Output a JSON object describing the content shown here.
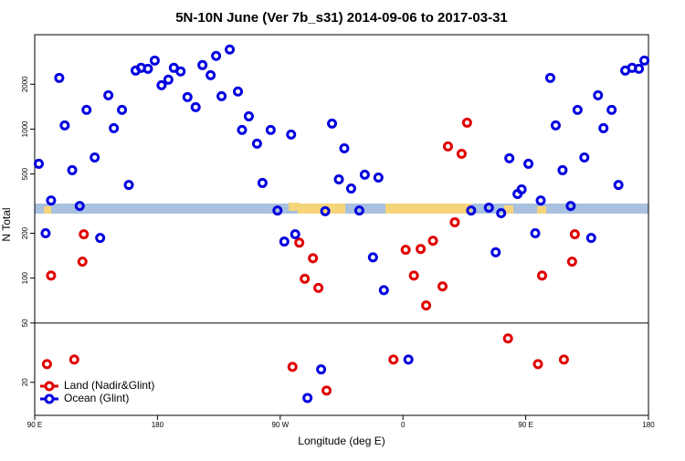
{
  "chart_data": {
    "type": "scatter",
    "title": "5N-10N June (Ver 7b_s31)   2014-09-06 to 2017-03-31",
    "x_label": "Longitude (deg E)",
    "y_label": "N Total",
    "xlim": [
      90,
      540
    ],
    "ylim": [
      12,
      4300
    ],
    "log_y": true,
    "hline": 50,
    "xticks": [
      {
        "value": 90,
        "label": "90 E"
      },
      180,
      {
        "value": 270,
        "label": "90 W"
      },
      {
        "value": 360,
        "label": "0"
      },
      {
        "value": 450,
        "label": "90 E"
      },
      {
        "value": 540,
        "label": "180"
      }
    ],
    "yticks": [
      20,
      50,
      100,
      200,
      500,
      1000,
      2000
    ],
    "legend": "bottom-left",
    "series": [
      {
        "name": "Land (Nadir&Glint)",
        "color": "#e00000",
        "x": [
          99,
          102,
          119,
          125,
          126,
          279,
          284,
          288,
          294,
          298,
          304,
          353,
          362,
          368,
          373,
          377,
          382,
          389,
          393,
          398,
          403,
          407,
          437,
          459,
          462,
          478,
          484,
          486
        ],
        "values": [
          26.5,
          104,
          28.4,
          129,
          197,
          25.4,
          173,
          99,
          136,
          86,
          17.6,
          28.4,
          155,
          104,
          157,
          65.5,
          178,
          88,
          765,
          237,
          683,
          1104,
          39.4,
          26.5,
          104,
          28.4,
          129,
          197
        ]
      },
      {
        "name": "Ocean (Glint)",
        "color": "#0000e0",
        "x": [
          93,
          98,
          102,
          108,
          112,
          117.5,
          123,
          128,
          134,
          138,
          144,
          148,
          154,
          159,
          164,
          168,
          173,
          178,
          183,
          188,
          192,
          197,
          202,
          208,
          213,
          219,
          223,
          227,
          233,
          239,
          242,
          247,
          253,
          257,
          263,
          268,
          273,
          278,
          281,
          303,
          308,
          313,
          317,
          322,
          328,
          332,
          338,
          342,
          346,
          364,
          410,
          423,
          428,
          432,
          438,
          444,
          447,
          452,
          457,
          461,
          468,
          472,
          477,
          483,
          488,
          493,
          498,
          503,
          507,
          513,
          518,
          523,
          528,
          533,
          537,
          290,
          300
        ],
        "values": [
          585,
          200,
          332,
          2206,
          1059,
          530,
          305,
          1345,
          645,
          186,
          1687,
          1014,
          1345,
          422,
          2470,
          2577,
          2540,
          2884,
          1970,
          2145,
          2577,
          2436,
          1640,
          1403,
          2688,
          2300,
          3097,
          1662,
          3420,
          1786,
          986,
          1218,
          798,
          435,
          986,
          284,
          176,
          919,
          197,
          281,
          1089,
          460,
          743,
          399,
          284,
          494,
          138,
          473,
          83,
          28.4,
          284,
          297,
          149,
          273,
          637,
          367,
          394,
          585,
          200,
          332,
          2206,
          1059,
          530,
          305,
          1345,
          645,
          186,
          1687,
          1014,
          1345,
          422,
          2470,
          2577,
          2540,
          2884,
          15.7,
          24.4
        ]
      }
    ]
  }
}
